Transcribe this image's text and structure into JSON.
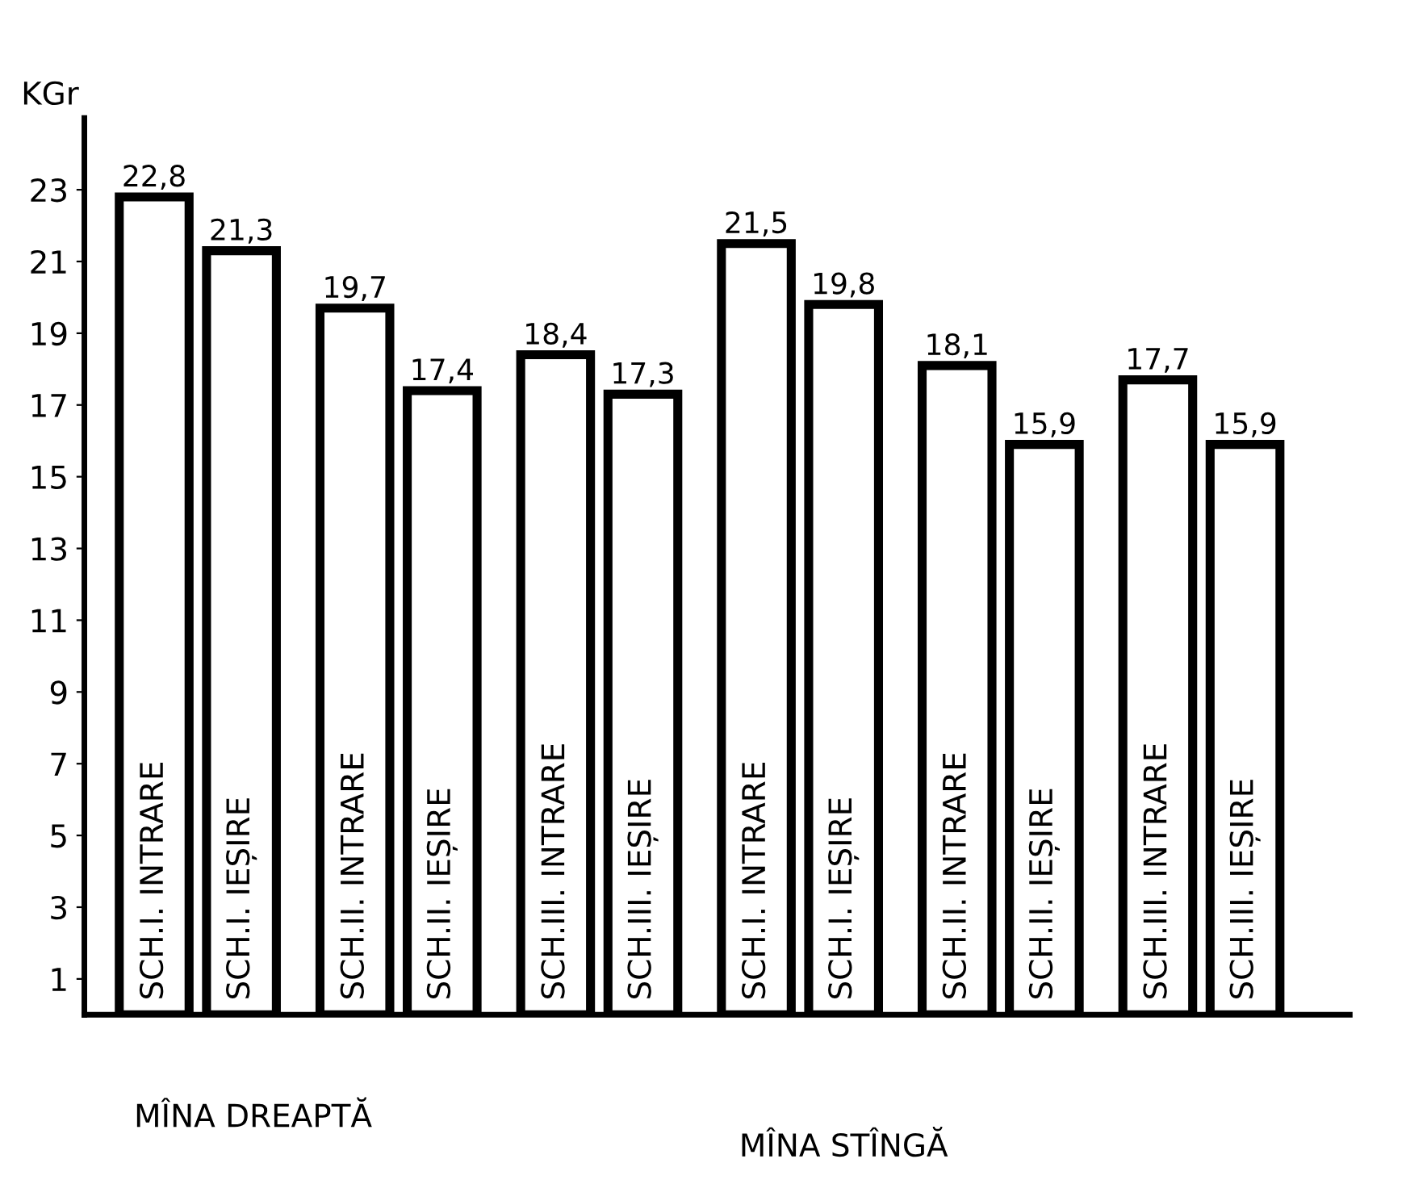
{
  "chart_data": {
    "type": "bar",
    "ylabel": "KGr",
    "categories": [
      "SCH.I. INTRARE",
      "SCH.I. IEȘIRE",
      "SCH.II. INTRARE",
      "SCH.II. IEȘIRE",
      "SCH.III. INTRARE",
      "SCH.III. IEȘIRE",
      "SCH.I. INTRARE",
      "SCH.I. IEȘIRE",
      "SCH.II. INTRARE",
      "SCH.II. IEȘIRE",
      "SCH.III. INTRARE",
      "SCH.III. IEȘIRE"
    ],
    "values": [
      22.8,
      21.3,
      19.7,
      17.4,
      18.4,
      17.3,
      21.5,
      19.8,
      18.1,
      15.9,
      17.7,
      15.9
    ],
    "value_labels": [
      "22,8",
      "21,3",
      "19,7",
      "17,4",
      "18,4",
      "17,3",
      "21,5",
      "19,8",
      "18,1",
      "15,9",
      "17,7",
      "15,9"
    ],
    "color": "#ffffff",
    "ylim": [
      0,
      25
    ],
    "yticks": [
      1,
      3,
      5,
      7,
      9,
      11,
      13,
      15,
      17,
      19,
      21,
      23
    ],
    "tick_labels": "y",
    "grid": false,
    "legend": false,
    "annotations": [
      "MÎNA DREAPTĂ",
      "MÎNA STÎNGĂ"
    ]
  }
}
